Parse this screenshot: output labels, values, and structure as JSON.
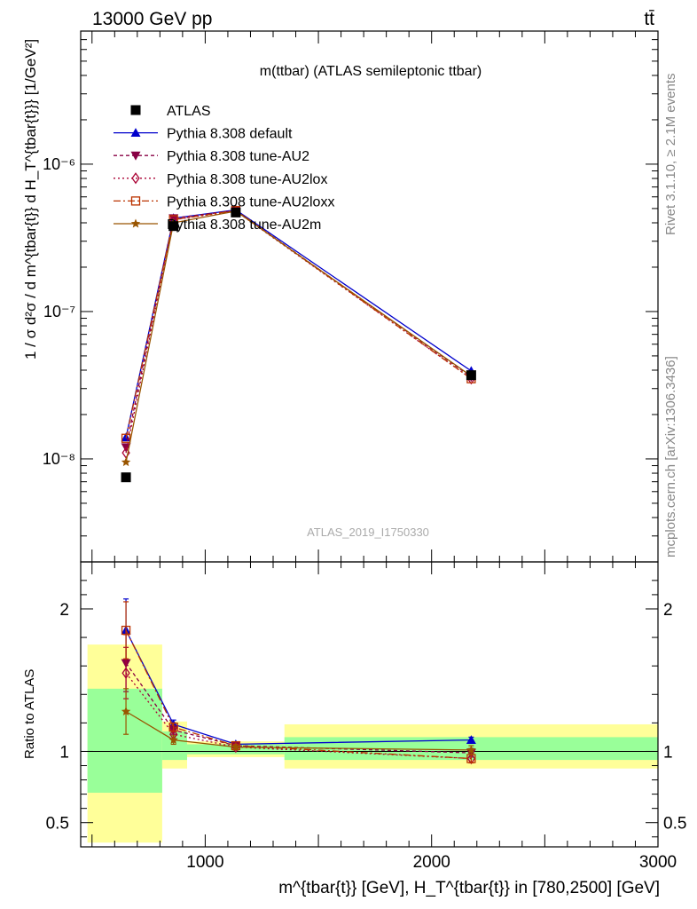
{
  "header": {
    "energy_label": "13000 GeV pp",
    "process_label": "tt̄"
  },
  "side_labels": {
    "rivet": "Rivet 3.1.10, ≥ 2.1M events",
    "mcplots": "mcplots.cern.ch [arXiv:1306.3436]"
  },
  "chart_data": [
    {
      "type": "scatter",
      "title": "m(ttbar) (ATLAS semileptonic ttbar)",
      "watermark": "ATLAS_2019_I1750330",
      "yscale": "log",
      "ylim": [
        2e-09,
        8e-06
      ],
      "xlim": [
        450,
        3000
      ],
      "ylabel": "1 / σ d²σ / d m^{tbar{t}} d H_T^{tbar{t}}} [1/GeV²]",
      "ytick_labels": [
        "10⁻⁸",
        "10⁻⁷",
        "10⁻⁶"
      ],
      "legend_position": "top-left",
      "x": [
        650,
        860,
        1135,
        2175
      ],
      "series": [
        {
          "name": "ATLAS",
          "color": "#000000",
          "marker": "square-filled",
          "values": [
            7.5e-09,
            3.8e-07,
            4.7e-07,
            3.7e-08
          ]
        },
        {
          "name": "Pythia 8.308 default",
          "color": "#0000cc",
          "marker": "triangle-up-filled",
          "dash": "solid",
          "values": [
            1.4e-08,
            4.3e-07,
            4.9e-07,
            3.95e-08
          ]
        },
        {
          "name": "Pythia 8.308 tune-AU2",
          "color": "#880044",
          "marker": "triangle-down-filled",
          "dash": "4,3",
          "values": [
            1.2e-08,
            4.3e-07,
            4.85e-07,
            3.6e-08
          ]
        },
        {
          "name": "Pythia 8.308 tune-AU2lox",
          "color": "#aa0033",
          "marker": "diamond-open",
          "dash": "2,3",
          "values": [
            1.1e-08,
            4.2e-07,
            4.8e-07,
            3.5e-08
          ]
        },
        {
          "name": "Pythia 8.308 tune-AU2loxx",
          "color": "#bb3300",
          "marker": "square-open",
          "dash": "8,3,2,3",
          "values": [
            1.38e-08,
            4.2e-07,
            4.85e-07,
            3.5e-08
          ]
        },
        {
          "name": "Pythia 8.308 tune-AU2m",
          "color": "#995500",
          "marker": "star",
          "dash": "solid",
          "values": [
            9.5e-09,
            4e-07,
            4.8e-07,
            3.65e-08
          ]
        }
      ]
    },
    {
      "type": "scatter",
      "ylabel": "Ratio to ATLAS",
      "xlabel": "m^{tbar{t}} [GeV], H_T^{tbar{t}} in [780,2500] [GeV]",
      "ylim": [
        0.33,
        2.33
      ],
      "xlim": [
        450,
        3000
      ],
      "ytick_labels": [
        "0.5",
        "1",
        "2"
      ],
      "xtick_labels": [
        "1000",
        "2000",
        "3000"
      ],
      "x": [
        650,
        860,
        1135,
        2175
      ],
      "uncertainty_bins": [
        {
          "x_low": 480,
          "x_high": 810,
          "yellow": [
            0.36,
            1.75
          ],
          "green": [
            0.71,
            1.44
          ]
        },
        {
          "x_low": 810,
          "x_high": 920,
          "yellow": [
            0.88,
            1.21
          ],
          "green": [
            0.94,
            1.14
          ]
        },
        {
          "x_low": 920,
          "x_high": 1350,
          "yellow": [
            0.96,
            1.07
          ],
          "green": [
            0.98,
            1.05
          ]
        },
        {
          "x_low": 1350,
          "x_high": 3000,
          "yellow": [
            0.88,
            1.19
          ],
          "green": [
            0.94,
            1.1
          ]
        }
      ],
      "series": [
        {
          "name": "Pythia 8.308 default",
          "values": [
            1.85,
            1.19,
            1.05,
            1.08
          ],
          "errors": [
            0.22,
            0.03,
            0.01,
            0.02
          ]
        },
        {
          "name": "Pythia 8.308 tune-AU2",
          "values": [
            1.62,
            1.15,
            1.04,
            0.99
          ],
          "errors": [
            0.2,
            0.03,
            0.01,
            0.03
          ]
        },
        {
          "name": "Pythia 8.308 tune-AU2lox",
          "values": [
            1.55,
            1.12,
            1.03,
            0.95
          ],
          "errors": [
            0.18,
            0.03,
            0.01,
            0.03
          ]
        },
        {
          "name": "Pythia 8.308 tune-AU2loxx",
          "values": [
            1.85,
            1.17,
            1.04,
            0.95
          ],
          "errors": [
            0.2,
            0.03,
            0.01,
            0.03
          ]
        },
        {
          "name": "Pythia 8.308 tune-AU2m",
          "values": [
            1.28,
            1.08,
            1.03,
            1.01
          ],
          "errors": [
            0.16,
            0.03,
            0.01,
            0.03
          ]
        }
      ]
    }
  ]
}
